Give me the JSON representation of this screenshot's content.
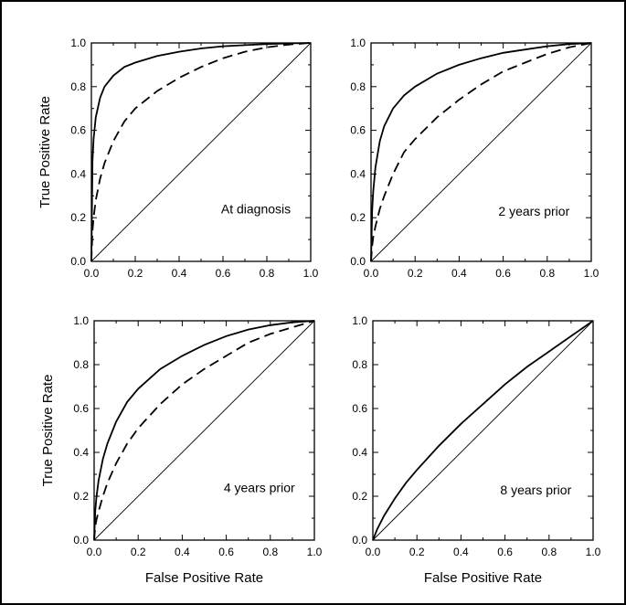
{
  "chart_data": [
    {
      "type": "line",
      "annotation": "At diagnosis",
      "xlabel": "",
      "ylabel": "True Positive Rate",
      "xlim": [
        0,
        1
      ],
      "ylim": [
        0,
        1
      ],
      "xticks": [
        "0.0",
        "0.2",
        "0.4",
        "0.6",
        "0.8",
        "1.0"
      ],
      "yticks": [
        "0.0",
        "0.2",
        "0.4",
        "0.6",
        "0.8",
        "1.0"
      ],
      "series": [
        {
          "style": "solid",
          "x": [
            0,
            0.005,
            0.01,
            0.02,
            0.04,
            0.06,
            0.1,
            0.15,
            0.2,
            0.3,
            0.4,
            0.5,
            0.6,
            0.7,
            0.8,
            0.9,
            1.0
          ],
          "y": [
            0,
            0.46,
            0.56,
            0.66,
            0.75,
            0.8,
            0.85,
            0.89,
            0.91,
            0.94,
            0.96,
            0.975,
            0.985,
            0.99,
            0.995,
            0.998,
            1.0
          ]
        },
        {
          "style": "dashed",
          "x": [
            0,
            0.005,
            0.01,
            0.02,
            0.04,
            0.06,
            0.1,
            0.15,
            0.2,
            0.3,
            0.4,
            0.5,
            0.6,
            0.7,
            0.8,
            0.9,
            1.0
          ],
          "y": [
            0,
            0.14,
            0.2,
            0.28,
            0.38,
            0.45,
            0.55,
            0.64,
            0.7,
            0.78,
            0.84,
            0.89,
            0.93,
            0.96,
            0.98,
            0.993,
            1.0
          ]
        },
        {
          "style": "reference",
          "x": [
            0,
            1
          ],
          "y": [
            0,
            1
          ]
        }
      ]
    },
    {
      "type": "line",
      "annotation": "2 years prior",
      "xlabel": "",
      "ylabel": "",
      "xlim": [
        0,
        1
      ],
      "ylim": [
        0,
        1
      ],
      "xticks": [
        "0.0",
        "0.2",
        "0.4",
        "0.6",
        "0.8",
        "1.0"
      ],
      "yticks": [
        "0.0",
        "0.2",
        "0.4",
        "0.6",
        "0.8",
        "1.0"
      ],
      "series": [
        {
          "style": "solid",
          "x": [
            0,
            0.005,
            0.01,
            0.02,
            0.04,
            0.06,
            0.1,
            0.15,
            0.2,
            0.3,
            0.4,
            0.5,
            0.6,
            0.7,
            0.8,
            0.9,
            1.0
          ],
          "y": [
            0,
            0.23,
            0.32,
            0.43,
            0.55,
            0.62,
            0.7,
            0.76,
            0.8,
            0.86,
            0.9,
            0.93,
            0.955,
            0.97,
            0.985,
            0.995,
            1.0
          ]
        },
        {
          "style": "dashed",
          "x": [
            0,
            0.005,
            0.01,
            0.02,
            0.04,
            0.06,
            0.1,
            0.15,
            0.2,
            0.3,
            0.4,
            0.5,
            0.6,
            0.7,
            0.8,
            0.9,
            1.0
          ],
          "y": [
            0,
            0.07,
            0.11,
            0.16,
            0.24,
            0.3,
            0.4,
            0.5,
            0.56,
            0.66,
            0.74,
            0.81,
            0.87,
            0.91,
            0.95,
            0.98,
            1.0
          ]
        },
        {
          "style": "reference",
          "x": [
            0,
            1
          ],
          "y": [
            0,
            1
          ]
        }
      ]
    },
    {
      "type": "line",
      "annotation": "4 years prior",
      "xlabel": "False Positive Rate",
      "ylabel": "True Positive Rate",
      "xlim": [
        0,
        1
      ],
      "ylim": [
        0,
        1
      ],
      "xticks": [
        "0.0",
        "0.2",
        "0.4",
        "0.6",
        "0.8",
        "1.0"
      ],
      "yticks": [
        "0.0",
        "0.2",
        "0.4",
        "0.6",
        "0.8",
        "1.0"
      ],
      "series": [
        {
          "style": "solid",
          "x": [
            0,
            0.005,
            0.01,
            0.02,
            0.04,
            0.06,
            0.1,
            0.15,
            0.2,
            0.3,
            0.4,
            0.5,
            0.6,
            0.7,
            0.8,
            0.9,
            1.0
          ],
          "y": [
            0,
            0.13,
            0.19,
            0.27,
            0.37,
            0.44,
            0.54,
            0.63,
            0.69,
            0.78,
            0.84,
            0.89,
            0.93,
            0.96,
            0.98,
            0.993,
            1.0
          ]
        },
        {
          "style": "dashed",
          "x": [
            0,
            0.005,
            0.01,
            0.02,
            0.04,
            0.06,
            0.1,
            0.15,
            0.2,
            0.3,
            0.4,
            0.5,
            0.6,
            0.7,
            0.8,
            0.9,
            1.0
          ],
          "y": [
            0,
            0.06,
            0.09,
            0.13,
            0.2,
            0.26,
            0.35,
            0.44,
            0.51,
            0.62,
            0.71,
            0.78,
            0.84,
            0.9,
            0.94,
            0.97,
            1.0
          ]
        },
        {
          "style": "reference",
          "x": [
            0,
            1
          ],
          "y": [
            0,
            1
          ]
        }
      ]
    },
    {
      "type": "line",
      "annotation": "8 years prior",
      "xlabel": "False Positive Rate",
      "ylabel": "",
      "xlim": [
        0,
        1
      ],
      "ylim": [
        0,
        1
      ],
      "xticks": [
        "0.0",
        "0.2",
        "0.4",
        "0.6",
        "0.8",
        "1.0"
      ],
      "yticks": [
        "0.0",
        "0.2",
        "0.4",
        "0.6",
        "0.8",
        "1.0"
      ],
      "series": [
        {
          "style": "solid",
          "x": [
            0,
            0.02,
            0.05,
            0.1,
            0.15,
            0.2,
            0.3,
            0.4,
            0.5,
            0.6,
            0.7,
            0.8,
            0.9,
            1.0
          ],
          "y": [
            0,
            0.05,
            0.11,
            0.19,
            0.26,
            0.32,
            0.43,
            0.53,
            0.62,
            0.71,
            0.79,
            0.86,
            0.93,
            1.0
          ]
        },
        {
          "style": "reference",
          "x": [
            0,
            1
          ],
          "y": [
            0,
            1
          ]
        }
      ]
    }
  ]
}
